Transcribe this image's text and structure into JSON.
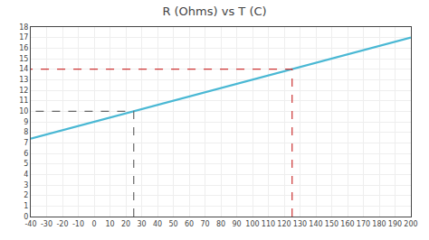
{
  "chart_data": {
    "type": "line",
    "title": "R (Ohms) vs T (C)",
    "series": [
      {
        "x": [
          -40,
          200
        ],
        "values": [
          7.4,
          17.0
        ],
        "color": "#4ab8d4",
        "line_style": "solid"
      },
      {
        "x": [
          25,
          25,
          -40
        ],
        "values": [
          0,
          10,
          10
        ],
        "color": "#666666",
        "line_style": "dashed"
      },
      {
        "x": [
          125,
          125,
          -40
        ],
        "values": [
          0,
          14,
          14
        ],
        "color": "#cc3333",
        "line_style": "dashed"
      }
    ],
    "xlim": [
      -40,
      200
    ],
    "ylim": [
      0,
      18
    ],
    "xticks": [
      -40,
      -30,
      -20,
      -10,
      0,
      10,
      20,
      30,
      40,
      50,
      60,
      70,
      80,
      90,
      100,
      110,
      120,
      130,
      140,
      150,
      160,
      170,
      180,
      190,
      200
    ],
    "yticks": [
      0,
      1,
      2,
      3,
      4,
      5,
      6,
      7,
      8,
      9,
      10,
      11,
      12,
      13,
      14,
      15,
      16,
      17,
      18
    ],
    "grid": true
  }
}
